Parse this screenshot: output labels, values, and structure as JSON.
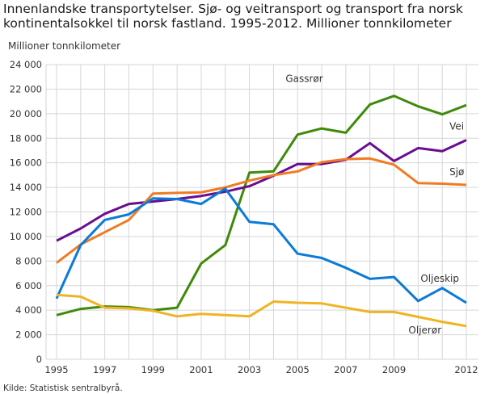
{
  "chart_data": {
    "type": "line",
    "title": "Innenlandske transportytelser. Sjø- og veitransport og transport fra norsk kontinentalsokkel til norsk fastland. 1995-2012. Millioner tonnkilometer",
    "ylabel": "Millioner tonnkilometer",
    "xlabel": "",
    "source": "Kilde: Statistisk sentralbyrå.",
    "ylim": [
      0,
      24000
    ],
    "yticks": [
      0,
      2000,
      4000,
      6000,
      8000,
      10000,
      12000,
      14000,
      16000,
      18000,
      20000,
      22000,
      24000
    ],
    "ytick_labels": [
      "0",
      "2 000",
      "4 000",
      "6 000",
      "8 000",
      "10 000",
      "12 000",
      "14 000",
      "16 000",
      "18 000",
      "20 000",
      "22 000",
      "24 000"
    ],
    "x": [
      1995,
      1996,
      1997,
      1998,
      1999,
      2000,
      2001,
      2002,
      2003,
      2004,
      2005,
      2006,
      2007,
      2008,
      2009,
      2010,
      2011,
      2012
    ],
    "xtick_labels": [
      "1995",
      "1997",
      "1999",
      "2001",
      "2003",
      "2005",
      "2007",
      "2009",
      "2012"
    ],
    "grid": true,
    "legend": "inline labels",
    "series": [
      {
        "name": "Gassrør",
        "color": "#3f8a0a",
        "values": [
          3600,
          4100,
          4300,
          4250,
          4000,
          4200,
          7800,
          9300,
          15200,
          15300,
          18300,
          18800,
          18450,
          20750,
          21450,
          20600,
          19950,
          20700
        ]
      },
      {
        "name": "Vei",
        "color": "#6a0d91",
        "values": [
          9650,
          10650,
          11850,
          12650,
          12850,
          13050,
          13300,
          13650,
          14100,
          14950,
          15900,
          15900,
          16250,
          17600,
          16150,
          17200,
          16950,
          17850
        ]
      },
      {
        "name": "Sjø",
        "color": "#f07b25",
        "values": [
          7850,
          9350,
          10350,
          11350,
          13500,
          13550,
          13600,
          14000,
          14550,
          15000,
          15300,
          16050,
          16300,
          16350,
          15850,
          14350,
          14300,
          14200
        ]
      },
      {
        "name": "Oljeskip",
        "color": "#0a7bd6",
        "values": [
          4950,
          9300,
          11350,
          11800,
          13100,
          13050,
          12650,
          13900,
          11200,
          11000,
          8600,
          8250,
          7450,
          6550,
          6700,
          4750,
          5800,
          4600
        ]
      },
      {
        "name": "Oljerør",
        "color": "#f0b323",
        "values": [
          5250,
          5100,
          4200,
          4150,
          3950,
          3500,
          3700,
          3600,
          3500,
          4700,
          4600,
          4550,
          4200,
          3850,
          3850,
          3450,
          3050,
          2700
        ]
      }
    ]
  }
}
